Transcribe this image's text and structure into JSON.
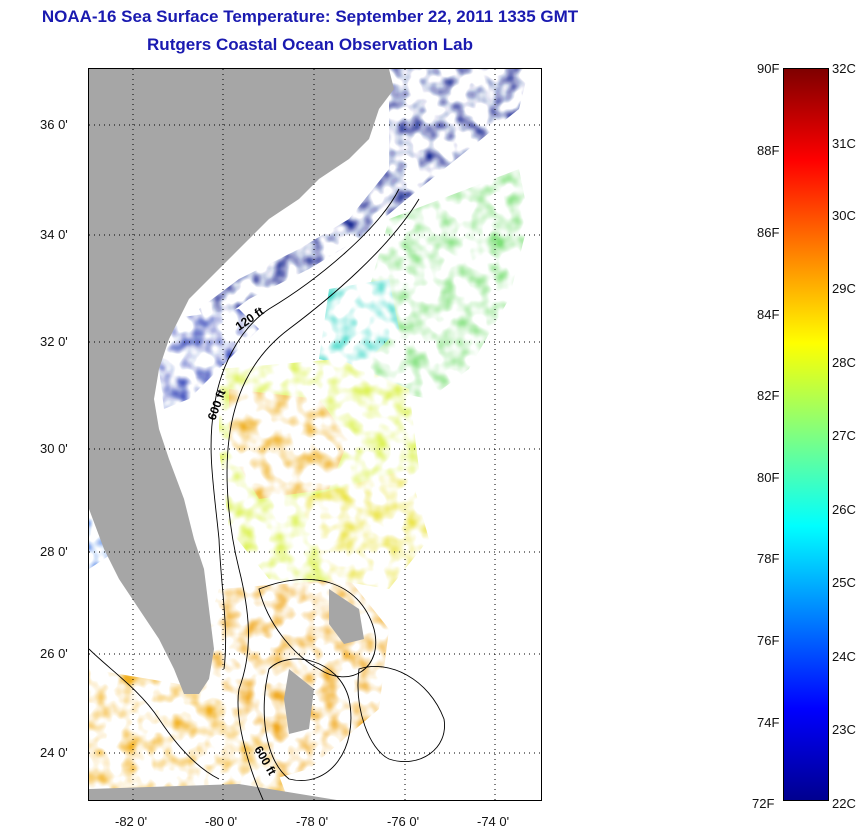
{
  "title": {
    "line1": "NOAA-16 Sea Surface Temperature:  September 22, 2011 1335 GMT",
    "line2": "Rutgers Coastal Ocean Observation Lab"
  },
  "map": {
    "lat_labels": [
      "36 0'",
      "34 0'",
      "32 0'",
      "30 0'",
      "28 0'",
      "26 0'",
      "24 0'"
    ],
    "lon_labels": [
      "-82 0'",
      "-80 0'",
      "-78 0'",
      "-76 0'",
      "-74 0'"
    ],
    "contour_labels": [
      "120 ft",
      "600 ft",
      "600 ft"
    ],
    "land_color": "#a6a6a6",
    "cloud_color": "#ffffff"
  },
  "colorbar": {
    "fahrenheit_labels": [
      "90F",
      "88F",
      "86F",
      "84F",
      "82F",
      "80F",
      "78F",
      "76F",
      "74F",
      "72F"
    ],
    "celsius_labels": [
      "32C",
      "31C",
      "30C",
      "29C",
      "28C",
      "27C",
      "26C",
      "25C",
      "24C",
      "23C",
      "22C"
    ],
    "colors": [
      "#7f0000",
      "#ff0000",
      "#ff8000",
      "#ffff00",
      "#80ff80",
      "#00ffff",
      "#0080ff",
      "#0000ff",
      "#00008f"
    ]
  }
}
